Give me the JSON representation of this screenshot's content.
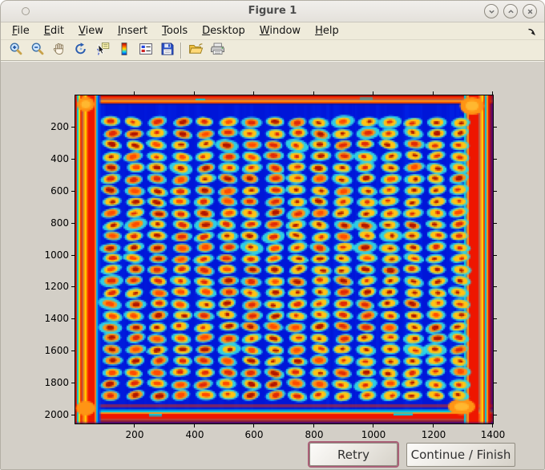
{
  "window": {
    "title": "Figure 1",
    "controls": [
      {
        "name": "shade-window",
        "glyph": "chevron-down"
      },
      {
        "name": "maximize-window",
        "glyph": "chevron-up"
      },
      {
        "name": "close-window",
        "glyph": "x"
      }
    ]
  },
  "menubar": {
    "items": [
      {
        "label": "File"
      },
      {
        "label": "Edit"
      },
      {
        "label": "View"
      },
      {
        "label": "Insert"
      },
      {
        "label": "Tools"
      },
      {
        "label": "Desktop"
      },
      {
        "label": "Window"
      },
      {
        "label": "Help"
      }
    ],
    "dock_icon": "dock-figure-arrow"
  },
  "toolbar": {
    "icons": [
      "zoom-in",
      "zoom-out",
      "pan",
      "rotate-3d",
      "data-cursor",
      "colorbar",
      "insert-legend",
      "save",
      "separator",
      "open-folder",
      "print"
    ]
  },
  "figure": {
    "axes": {
      "x_ticks": [
        "200",
        "400",
        "600",
        "800",
        "1000",
        "1200",
        "1400"
      ],
      "y_ticks": [
        "200",
        "400",
        "600",
        "800",
        "1000",
        "1200",
        "1400",
        "1600",
        "1800",
        "2000"
      ],
      "x_range": [
        0,
        1400
      ],
      "y_range": [
        0,
        2050
      ]
    },
    "image": {
      "description": "Microarray plate scan shown with jet colormap: blue field, grid of spots (cyan halo, yellow ring, red core), saturated red border bands with orange corners",
      "grid": {
        "rows": 25,
        "cols": 16
      },
      "palette": {
        "background": "#0016d8",
        "background_light": "#0a3cff",
        "halo": "#2fd8e6",
        "ring": "#ffc414",
        "ring_orange": "#ff9414",
        "core": "#e02808",
        "core_bright": "#ff4a00",
        "core_dark": "#b01400",
        "border_red": "#ee1600",
        "border_orange": "#ff9414",
        "border_yellow": "#ffdc00",
        "border_cyan": "#00c8e0"
      }
    }
  },
  "buttons": {
    "retry_label": "Retry",
    "continue_label": "Continue / Finish"
  }
}
